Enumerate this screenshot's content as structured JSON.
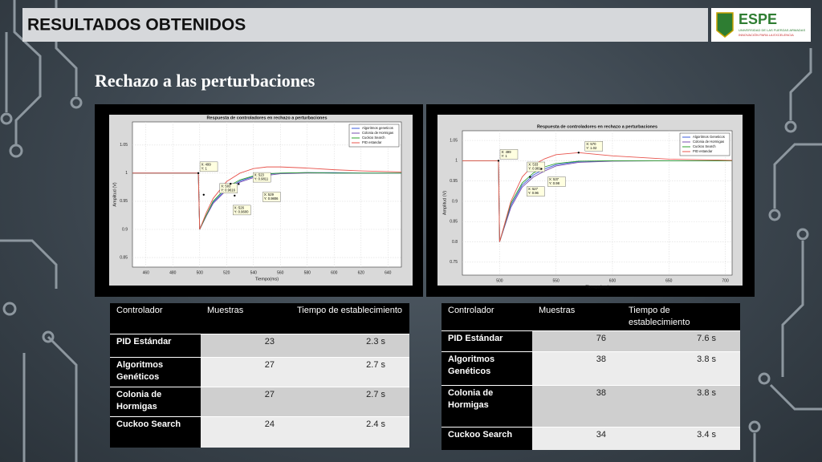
{
  "header": {
    "title": "RESULTADOS OBTENIDOS",
    "logo": {
      "name": "ESPE",
      "subtitle": "UNIVERSIDAD DE LAS FUERZAS ARMADAS",
      "motto": "INNOVACIÓN PARA LA EXCELENCIA"
    }
  },
  "subtitle": "Rechazo a las perturbaciones",
  "charts": [
    {
      "type": "line",
      "title": "Respuesta de controladores en rechazo a perturbaciones",
      "xlabel": "Tiempo(ms)",
      "ylabel": "Amplitud (V)",
      "xlim": [
        450,
        650
      ],
      "ylim": [
        0.833,
        1.091
      ],
      "xticks": [
        460,
        480,
        500,
        520,
        540,
        560,
        580,
        600,
        620,
        640
      ],
      "yticks": [
        0.85,
        0.9,
        0.95,
        1,
        1.05
      ],
      "grid": true,
      "legend": "upper right",
      "x": [
        450,
        499,
        500,
        505,
        510,
        520,
        530,
        540,
        550,
        560,
        580,
        600,
        620,
        650
      ],
      "series": [
        {
          "name": "Algoritmos geneticos",
          "color": "#3b5bdb",
          "values": [
            1,
            1,
            0.9,
            0.925,
            0.948,
            0.972,
            0.986,
            0.994,
            0.998,
            1.0,
            1.001,
            1.001,
            1.0,
            1.0
          ]
        },
        {
          "name": "Colonia de Hormigas",
          "color": "#7a4fb0",
          "values": [
            1,
            1,
            0.9,
            0.924,
            0.946,
            0.97,
            0.984,
            0.992,
            0.996,
            0.999,
            1.0,
            1.0,
            1.0,
            1.0
          ]
        },
        {
          "name": "Cuckoo Search",
          "color": "#2ca02c",
          "values": [
            1,
            1,
            0.9,
            0.926,
            0.95,
            0.975,
            0.988,
            0.995,
            0.999,
            1.0,
            1.001,
            1.0,
            1.0,
            1.0
          ]
        },
        {
          "name": "PID estandar",
          "color": "#e8554e",
          "values": [
            1,
            1,
            0.9,
            0.93,
            0.955,
            0.985,
            1.0,
            1.008,
            1.011,
            1.011,
            1.009,
            1.006,
            1.004,
            1.002
          ]
        }
      ],
      "annotations": [
        {
          "x": {
            "value": 499,
            "label": "X: 499"
          },
          "y": {
            "value": 1,
            "label": "Y: 1"
          }
        },
        {
          "x": {
            "value": 503,
            "label": "X: 503"
          },
          "y": {
            "value": 0.9616,
            "label": "Y: 0.9616"
          }
        },
        {
          "x": {
            "value": 523,
            "label": "X: 523"
          },
          "y": {
            "value": 0.9811,
            "label": "Y: 0.9811"
          }
        },
        {
          "x": {
            "value": 526,
            "label": "X: 526"
          },
          "y": {
            "value": 0.96,
            "label": "Y: 0.9600"
          }
        },
        {
          "x": {
            "value": 529,
            "label": "X: 529"
          },
          "y": {
            "value": 0.9806,
            "label": "Y: 0.9806"
          }
        }
      ]
    },
    {
      "type": "line",
      "title": "Respuesta de controladores en rechazo a perturbaciones",
      "xlabel": "Tiempo(ms)",
      "ylabel": "Amplitud (V)",
      "xlim": [
        467,
        706
      ],
      "ylim": [
        0.718,
        1.074
      ],
      "xticks": [
        500,
        550,
        600,
        650,
        700
      ],
      "yticks": [
        0.75,
        0.8,
        0.85,
        0.9,
        0.95,
        1,
        1.05
      ],
      "grid": true,
      "legend": "upper right",
      "x": [
        467,
        499,
        500,
        510,
        520,
        530,
        540,
        550,
        570,
        600,
        650,
        706
      ],
      "series": [
        {
          "name": "Algoritmos Geneticos",
          "color": "#3b5bdb",
          "values": [
            1,
            1,
            0.8,
            0.89,
            0.94,
            0.965,
            0.98,
            0.99,
            0.998,
            1.0,
            1.0,
            1.0
          ]
        },
        {
          "name": "Colonia de Hormigas",
          "color": "#7a4fb0",
          "values": [
            1,
            1,
            0.8,
            0.885,
            0.935,
            0.96,
            0.975,
            0.987,
            0.996,
            0.999,
            1.0,
            1.0
          ]
        },
        {
          "name": "Cuckoo Search",
          "color": "#2ca02c",
          "values": [
            1,
            1,
            0.8,
            0.895,
            0.945,
            0.97,
            0.985,
            0.993,
            0.999,
            1.0,
            1.0,
            1.0
          ]
        },
        {
          "name": "PID estandar",
          "color": "#e8554e",
          "values": [
            1,
            1,
            0.8,
            0.9,
            0.96,
            0.99,
            1.005,
            1.015,
            1.02,
            1.012,
            1.004,
            1.001
          ]
        }
      ],
      "annotations": [
        {
          "x": {
            "value": 499,
            "label": "X: 499"
          },
          "y": {
            "value": 1,
            "label": "Y: 1"
          }
        },
        {
          "x": {
            "value": 533,
            "label": "X: 533"
          },
          "y": {
            "value": 0.981,
            "label": "Y: 0.981"
          }
        },
        {
          "x": {
            "value": 527,
            "label": "X: 527"
          },
          "y": {
            "value": 0.96,
            "label": "Y: 0.96"
          }
        },
        {
          "x": {
            "value": 537,
            "label": "X: 537"
          },
          "y": {
            "value": 0.98,
            "label": "Y: 0.98"
          }
        },
        {
          "x": {
            "value": 570,
            "label": "X: 570"
          },
          "y": {
            "value": 1.02,
            "label": "Y: 1.02"
          }
        }
      ]
    }
  ],
  "tables": [
    {
      "header": [
        "Controlador",
        "Muestras",
        "Tiempo de establecimiento"
      ],
      "rows": [
        [
          "PID Estándar",
          "23",
          "2.3 s"
        ],
        [
          "Algoritmos Genéticos",
          "27",
          "2.7 s"
        ],
        [
          "Colonia de Hormigas",
          "27",
          "2.7 s"
        ],
        [
          "Cuckoo Search",
          "24",
          "2.4 s"
        ]
      ]
    },
    {
      "header": [
        "Controlador",
        "Muestras",
        "Tiempo de establecimiento"
      ],
      "rows": [
        [
          "PID Estándar",
          "76",
          "7.6 s"
        ],
        [
          "Algoritmos Genéticos",
          "38",
          "3.8 s"
        ],
        [
          "Colonia de Hormigas",
          "38",
          "3.8 s"
        ],
        [
          "Cuckoo Search",
          "34",
          "3.4 s"
        ]
      ]
    }
  ]
}
